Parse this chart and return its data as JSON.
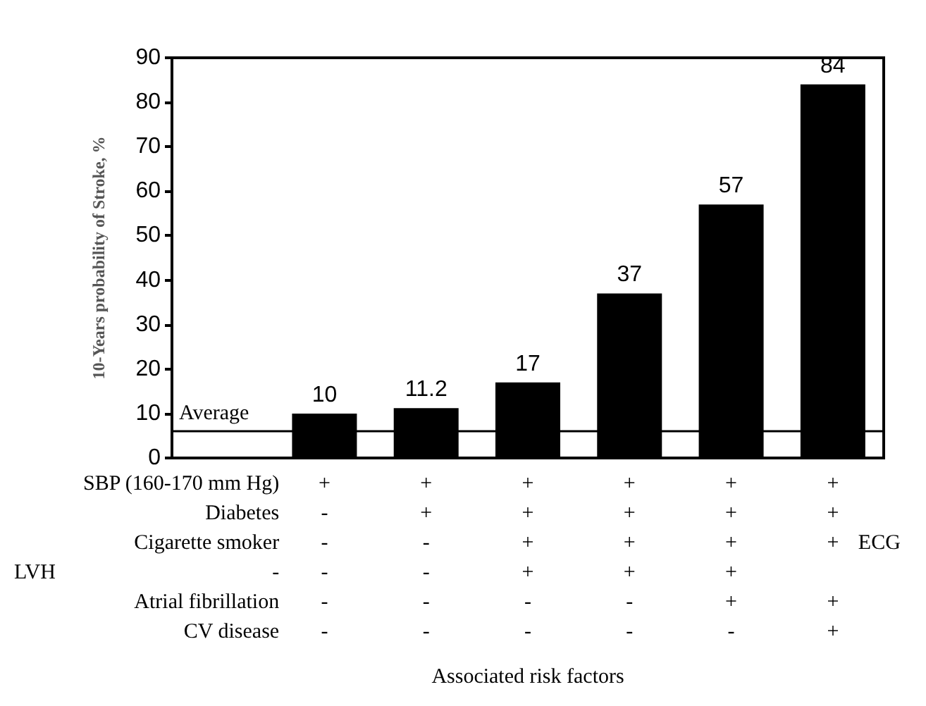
{
  "chart_data": {
    "type": "bar",
    "ylabel": "10-Years probability of Stroke, %",
    "xlabel": "Associated risk factors",
    "categories": [
      "SBP (160-170 mm Hg)\nDiabetes\nCigarette smoker\n-\nAtrial fibrillation\nCV disease",
      "+\n-\n-\n-\n-\n-",
      "+\n+\n-\n-\n-\n-",
      "+\n+\n+\n+\n-\n-",
      "+\n+\n+\n+\n-\n-",
      "+\n+\n+\n+\n+\n-",
      "+\n+\n+\n \n+\n+"
    ],
    "values": [
      null,
      10,
      11.2,
      17,
      37,
      57,
      84
    ],
    "color": "#000000",
    "ylim": [
      0,
      90
    ],
    "yticks": [
      0,
      10,
      20,
      30,
      40,
      50,
      60,
      70,
      80,
      90
    ],
    "grid": false,
    "data_labels": true,
    "ref_lines": [
      {
        "axis": "y",
        "value": 6,
        "label": "Average",
        "color": "#000000"
      }
    ],
    "annotations": [
      {
        "text": "ECG"
      },
      {
        "text": "LVH"
      }
    ]
  }
}
